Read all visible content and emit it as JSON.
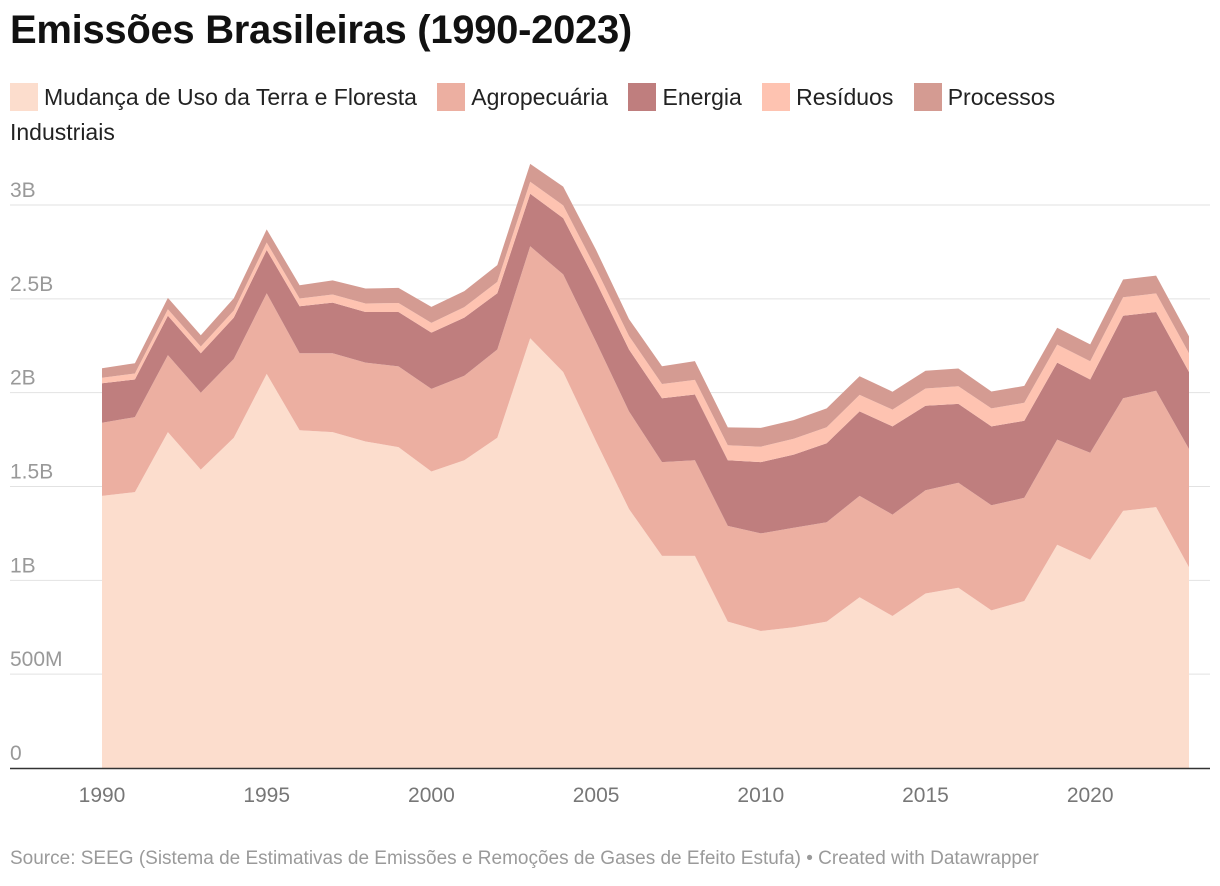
{
  "header": {
    "title": "Emissões Brasileiras (1990-2023)"
  },
  "legend": [
    {
      "label": "Mudança de Uso da Terra e Floresta",
      "color": "#fcddcd"
    },
    {
      "label": "Agropecuária",
      "color": "#ecafa1"
    },
    {
      "label": "Energia",
      "color": "#bf7e7e"
    },
    {
      "label": "Resíduos",
      "color": "#fec3b1"
    },
    {
      "label": "Processos Industriais",
      "color": "#d49b92"
    }
  ],
  "chart_data": {
    "type": "area",
    "stacked": true,
    "title": "Emissões Brasileiras (1990-2023)",
    "xlabel": "",
    "ylabel": "",
    "ylim": [
      0,
      3000000000
    ],
    "x": [
      1990,
      1991,
      1992,
      1993,
      1994,
      1995,
      1996,
      1997,
      1998,
      1999,
      2000,
      2001,
      2002,
      2003,
      2004,
      2005,
      2006,
      2007,
      2008,
      2009,
      2010,
      2011,
      2012,
      2013,
      2014,
      2015,
      2016,
      2017,
      2018,
      2019,
      2020,
      2021,
      2022,
      2023
    ],
    "x_ticks": [
      1990,
      1995,
      2000,
      2005,
      2010,
      2015,
      2020
    ],
    "x_tick_labels": [
      "1990",
      "1995",
      "2000",
      "2005",
      "2010",
      "2015",
      "2020"
    ],
    "y_ticks": [
      0,
      500000000,
      1000000000,
      1500000000,
      2000000000,
      2500000000,
      3000000000
    ],
    "y_tick_labels": [
      "0",
      "500M",
      "1B",
      "1.5B",
      "2B",
      "2.5B",
      "3B"
    ],
    "series": [
      {
        "name": "Mudança de Uso da Terra e Floresta",
        "color": "#fcddcd",
        "values": [
          1450000000,
          1470000000,
          1790000000,
          1590000000,
          1760000000,
          2100000000,
          1800000000,
          1790000000,
          1740000000,
          1710000000,
          1580000000,
          1640000000,
          1760000000,
          2290000000,
          2110000000,
          1740000000,
          1380000000,
          1130000000,
          1130000000,
          780000000,
          730000000,
          750000000,
          780000000,
          910000000,
          810000000,
          930000000,
          960000000,
          840000000,
          890000000,
          1190000000,
          1110000000,
          1370000000,
          1390000000,
          1070000000
        ]
      },
      {
        "name": "Agropecuária",
        "color": "#ecafa1",
        "values": [
          390000000,
          400000000,
          410000000,
          410000000,
          420000000,
          430000000,
          410000000,
          420000000,
          420000000,
          430000000,
          440000000,
          450000000,
          470000000,
          490000000,
          520000000,
          530000000,
          520000000,
          500000000,
          510000000,
          510000000,
          520000000,
          530000000,
          530000000,
          540000000,
          540000000,
          550000000,
          560000000,
          560000000,
          550000000,
          560000000,
          570000000,
          600000000,
          620000000,
          630000000
        ]
      },
      {
        "name": "Energia",
        "color": "#bf7e7e",
        "values": [
          210000000,
          200000000,
          210000000,
          210000000,
          220000000,
          230000000,
          250000000,
          270000000,
          270000000,
          290000000,
          300000000,
          310000000,
          300000000,
          280000000,
          300000000,
          320000000,
          330000000,
          340000000,
          350000000,
          350000000,
          380000000,
          390000000,
          420000000,
          450000000,
          470000000,
          450000000,
          420000000,
          420000000,
          410000000,
          410000000,
          390000000,
          440000000,
          420000000,
          410000000
        ]
      },
      {
        "name": "Resíduos",
        "color": "#fec3b1",
        "values": [
          30000000,
          32000000,
          35000000,
          36000000,
          38000000,
          40000000,
          42000000,
          43000000,
          45000000,
          48000000,
          52000000,
          56000000,
          60000000,
          64000000,
          68000000,
          70000000,
          72000000,
          76000000,
          78000000,
          80000000,
          82000000,
          84000000,
          86000000,
          88000000,
          90000000,
          92000000,
          94000000,
          96000000,
          96000000,
          96000000,
          97000000,
          98000000,
          99000000,
          100000000
        ]
      },
      {
        "name": "Processos Industriais",
        "color": "#d49b92",
        "values": [
          50000000,
          55000000,
          60000000,
          60000000,
          65000000,
          70000000,
          70000000,
          75000000,
          80000000,
          80000000,
          85000000,
          85000000,
          90000000,
          95000000,
          100000000,
          100000000,
          90000000,
          95000000,
          100000000,
          95000000,
          100000000,
          100000000,
          100000000,
          100000000,
          95000000,
          95000000,
          95000000,
          90000000,
          90000000,
          90000000,
          90000000,
          95000000,
          95000000,
          90000000
        ]
      }
    ]
  },
  "footer": {
    "source": "Source: SEEG (Sistema de Estimativas de Emissões e Remoções de Gases de Efeito Estufa) • Created with Datawrapper"
  }
}
